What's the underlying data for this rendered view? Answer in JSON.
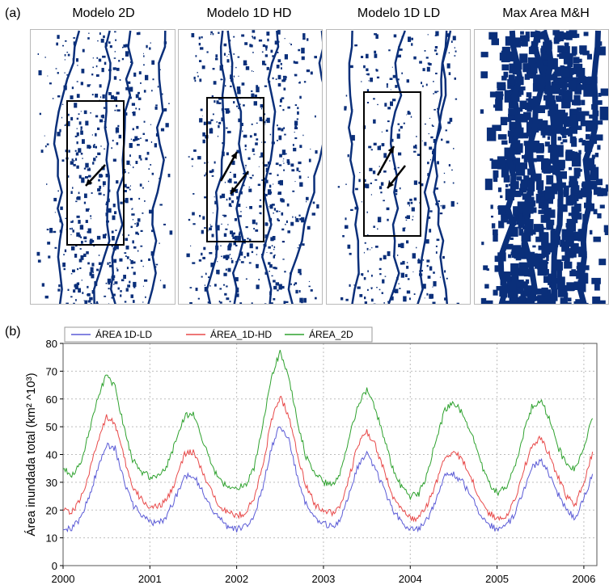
{
  "panel_a_label": "(a)",
  "panel_b_label": "(b)",
  "maps": [
    {
      "title": "Modelo 2D",
      "density": 0.55,
      "arrows": "down-left"
    },
    {
      "title": "Modelo 1D HD",
      "density": 0.6,
      "arrows": "both"
    },
    {
      "title": "Modelo 1D LD",
      "density": 0.35,
      "arrows": "both"
    },
    {
      "title": "Max Area M&H",
      "density": 0.8,
      "arrows": "none"
    }
  ],
  "colors": {
    "map_water": "#0a2f7a",
    "series_1d_ld": "#5b5bd6",
    "series_1d_hd": "#e84a4a",
    "series_2d": "#2fa22f",
    "grid": "#bdbdbd"
  },
  "chart_data": {
    "type": "line",
    "title": "",
    "xlabel": "",
    "ylabel": "Área inundada total (km² ^10³)",
    "xlim": [
      2000,
      2006.15
    ],
    "ylim": [
      0,
      80
    ],
    "xticks": [
      "2000",
      "2001",
      "2002",
      "2003",
      "2004",
      "2005",
      "2006"
    ],
    "yticks": [
      "0",
      "10",
      "20",
      "30",
      "40",
      "50",
      "60",
      "70",
      "80"
    ],
    "grid": true,
    "legend": "top-left",
    "x": [
      2000.0,
      2000.1,
      2000.2,
      2000.3,
      2000.4,
      2000.5,
      2000.6,
      2000.7,
      2000.8,
      2000.9,
      2001.0,
      2001.1,
      2001.2,
      2001.3,
      2001.4,
      2001.5,
      2001.6,
      2001.7,
      2001.8,
      2001.9,
      2002.0,
      2002.1,
      2002.2,
      2002.3,
      2002.4,
      2002.5,
      2002.6,
      2002.7,
      2002.8,
      2002.9,
      2003.0,
      2003.1,
      2003.2,
      2003.3,
      2003.4,
      2003.5,
      2003.6,
      2003.7,
      2003.8,
      2003.9,
      2004.0,
      2004.1,
      2004.2,
      2004.3,
      2004.4,
      2004.5,
      2004.6,
      2004.7,
      2004.8,
      2004.9,
      2005.0,
      2005.1,
      2005.2,
      2005.3,
      2005.4,
      2005.5,
      2005.6,
      2005.7,
      2005.8,
      2005.9,
      2006.0,
      2006.1
    ],
    "series": [
      {
        "name": "ÁREA 1D-LD",
        "values": [
          14,
          13,
          17,
          25,
          35,
          44,
          42,
          31,
          22,
          18,
          16,
          15,
          18,
          25,
          32,
          33,
          27,
          21,
          17,
          14,
          13,
          14,
          18,
          28,
          42,
          51,
          45,
          32,
          22,
          17,
          15,
          14,
          17,
          26,
          36,
          40,
          35,
          27,
          20,
          16,
          13,
          13,
          17,
          24,
          32,
          33,
          30,
          25,
          19,
          15,
          13,
          14,
          18,
          27,
          35,
          38,
          33,
          26,
          20,
          17,
          24,
          33
        ]
      },
      {
        "name": "ÁREA_1D-HD",
        "values": [
          21,
          19,
          24,
          33,
          45,
          54,
          51,
          39,
          28,
          24,
          21,
          21,
          24,
          31,
          40,
          41,
          34,
          27,
          22,
          19,
          18,
          19,
          24,
          36,
          52,
          61,
          54,
          40,
          29,
          22,
          20,
          19,
          22,
          32,
          44,
          48,
          43,
          34,
          25,
          20,
          17,
          17,
          22,
          30,
          39,
          41,
          38,
          32,
          24,
          19,
          17,
          18,
          23,
          34,
          43,
          46,
          40,
          32,
          25,
          22,
          30,
          41
        ]
      },
      {
        "name": "ÁREA_2D",
        "values": [
          36,
          32,
          37,
          48,
          60,
          69,
          64,
          50,
          38,
          34,
          32,
          32,
          36,
          45,
          54,
          55,
          46,
          37,
          31,
          28,
          28,
          29,
          35,
          50,
          68,
          77,
          68,
          52,
          39,
          33,
          30,
          29,
          34,
          47,
          58,
          63,
          56,
          46,
          35,
          28,
          25,
          26,
          33,
          46,
          56,
          59,
          55,
          48,
          38,
          30,
          26,
          28,
          35,
          47,
          57,
          60,
          53,
          43,
          36,
          35,
          43,
          53
        ]
      }
    ]
  }
}
